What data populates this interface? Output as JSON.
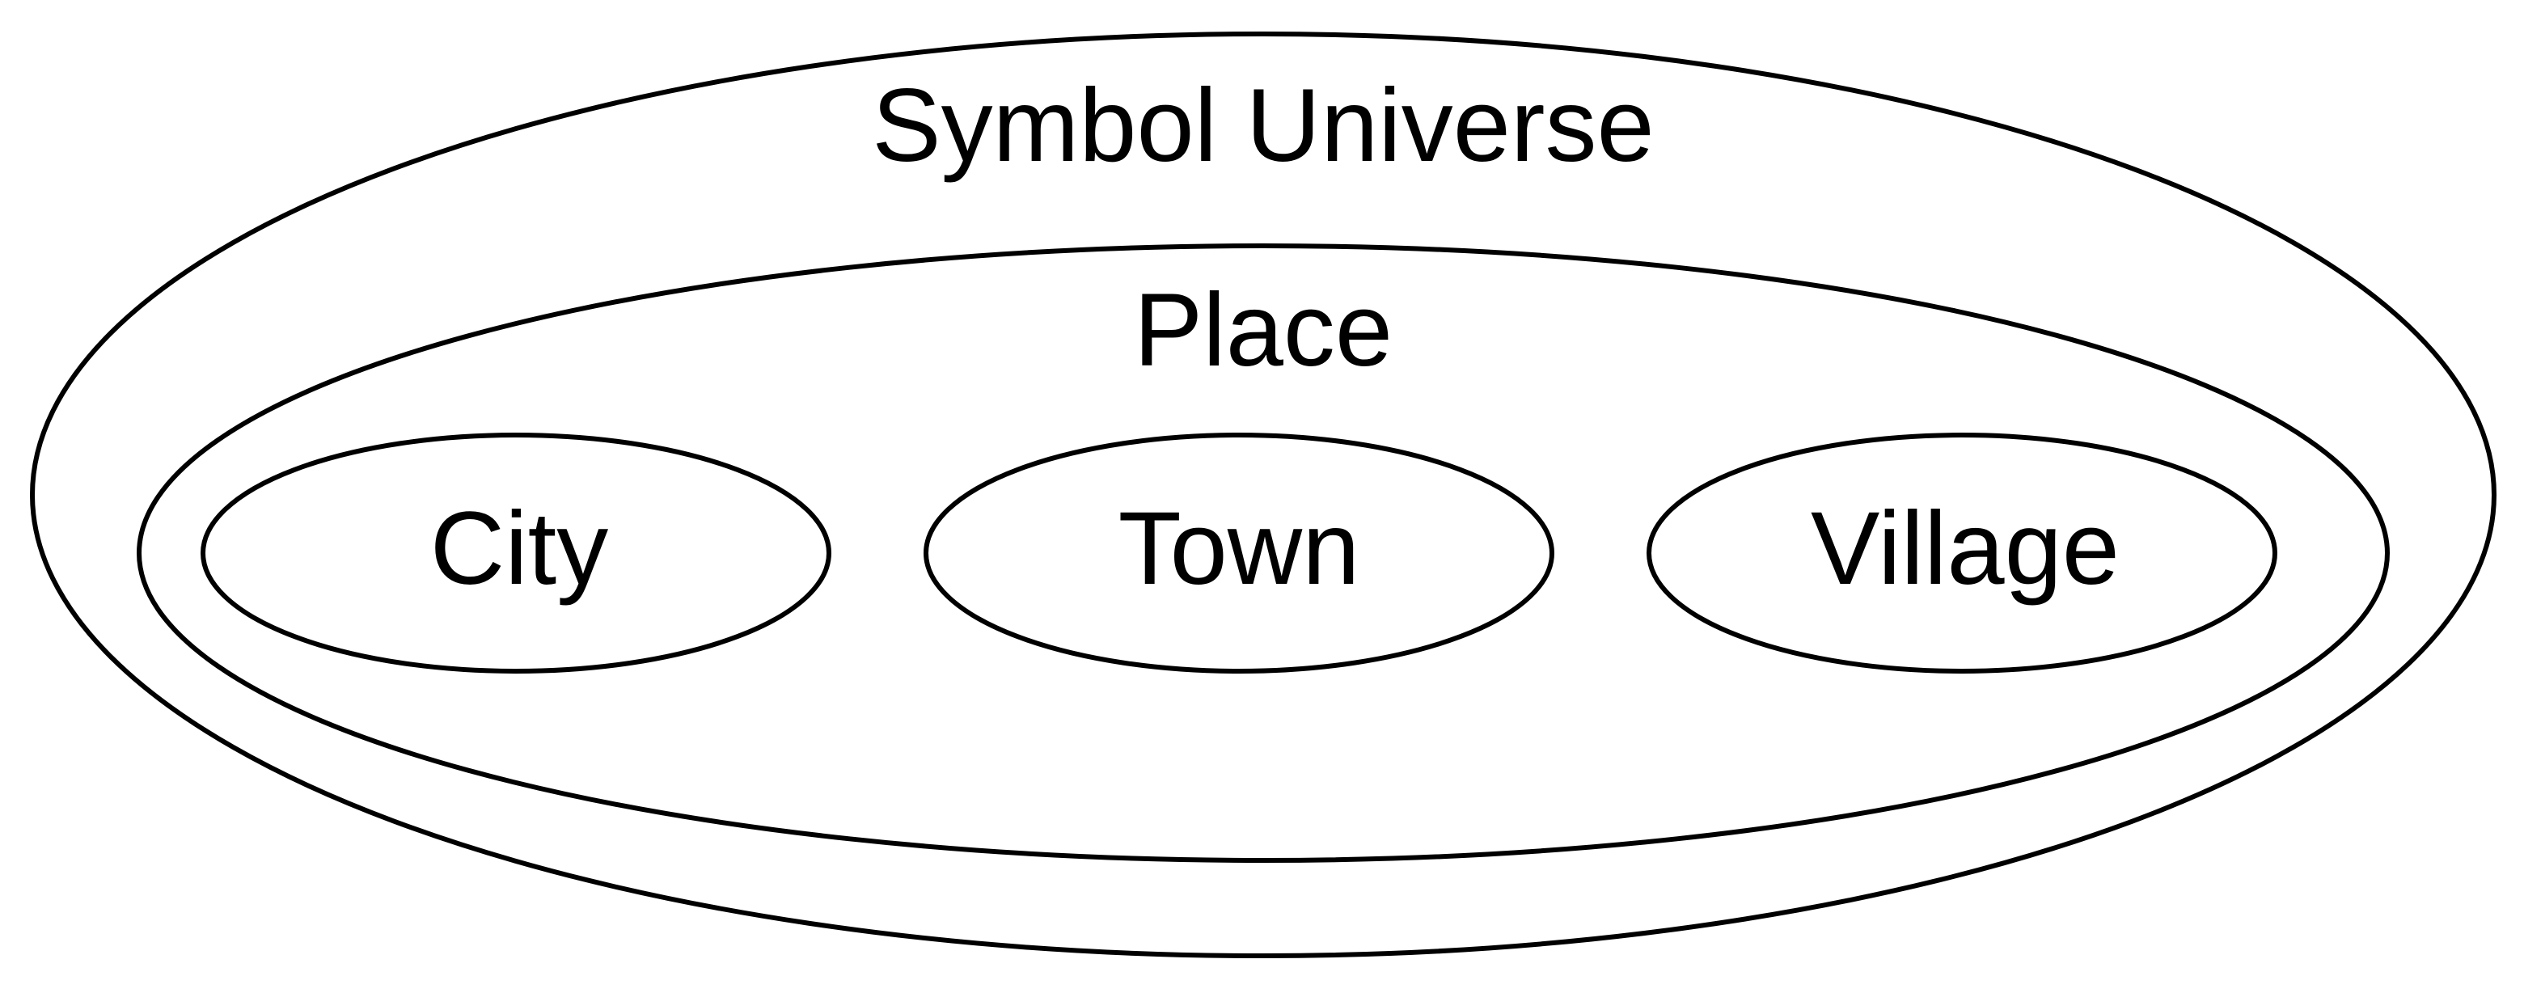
{
  "diagram": {
    "type": "nested-sets",
    "outer": {
      "label": "Symbol Universe"
    },
    "middle": {
      "label": "Place"
    },
    "inner": [
      {
        "label": "City"
      },
      {
        "label": "Town"
      },
      {
        "label": "Village"
      }
    ],
    "stroke_color": "#000000",
    "background_color": "#ffffff"
  }
}
